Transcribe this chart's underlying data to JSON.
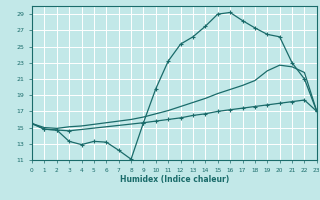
{
  "xlabel": "Humidex (Indice chaleur)",
  "bg_color": "#c2e8e8",
  "line_color": "#1a6b6a",
  "grid_color": "#ffffff",
  "series1_x": [
    0,
    1,
    2,
    3,
    4,
    5,
    6,
    7,
    8,
    9,
    10,
    11,
    12,
    13,
    14,
    15,
    16,
    17,
    18,
    19,
    20,
    21,
    22,
    23
  ],
  "series1_y": [
    15.5,
    14.8,
    14.7,
    13.3,
    12.9,
    13.3,
    13.2,
    12.2,
    11.1,
    15.6,
    15.8,
    16.0,
    16.2,
    16.5,
    16.7,
    17.0,
    17.2,
    17.4,
    17.6,
    17.8,
    18.0,
    18.2,
    18.4,
    17.0
  ],
  "series2_x": [
    0,
    1,
    2,
    3,
    4,
    5,
    6,
    7,
    8,
    9,
    10,
    11,
    12,
    13,
    14,
    15,
    16,
    17,
    18,
    19,
    20,
    21,
    22,
    23
  ],
  "series2_y": [
    15.5,
    15.0,
    14.9,
    15.1,
    15.2,
    15.4,
    15.6,
    15.8,
    16.0,
    16.3,
    16.7,
    17.1,
    17.6,
    18.1,
    18.6,
    19.2,
    19.7,
    20.2,
    20.8,
    22.0,
    22.7,
    22.5,
    21.8,
    17.0
  ],
  "series3_x": [
    0,
    1,
    2,
    3,
    9,
    10,
    11,
    12,
    13,
    14,
    15,
    16,
    17,
    18,
    19,
    20,
    21,
    22,
    23
  ],
  "series3_y": [
    15.5,
    14.8,
    14.7,
    14.6,
    15.6,
    19.8,
    23.2,
    25.3,
    26.2,
    27.5,
    29.0,
    29.2,
    28.2,
    27.3,
    26.5,
    26.2,
    23.0,
    21.0,
    17.0
  ],
  "xlim": [
    0,
    23
  ],
  "ylim": [
    11,
    30
  ],
  "yticks": [
    11,
    13,
    15,
    17,
    19,
    21,
    23,
    25,
    27,
    29
  ],
  "xticks": [
    0,
    1,
    2,
    3,
    4,
    5,
    6,
    7,
    8,
    9,
    10,
    11,
    12,
    13,
    14,
    15,
    16,
    17,
    18,
    19,
    20,
    21,
    22,
    23
  ]
}
